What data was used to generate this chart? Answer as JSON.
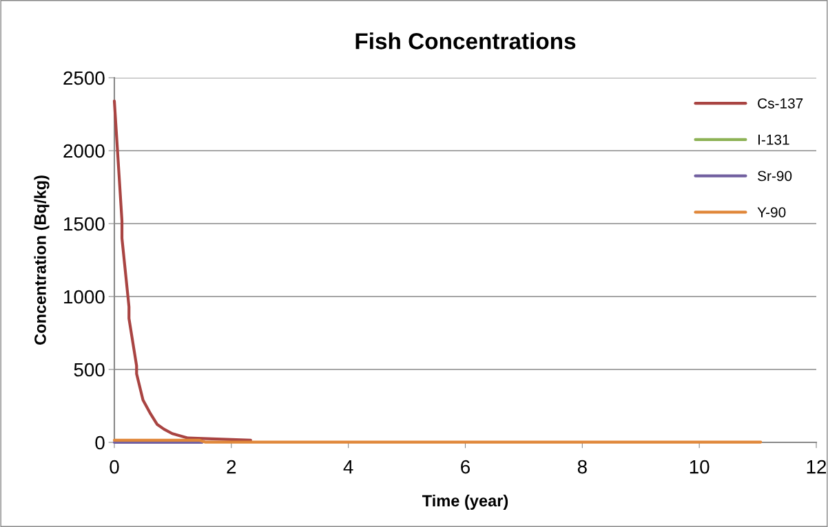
{
  "chart_data": {
    "type": "line",
    "title": "Fish Concentrations",
    "xlabel": "Time (year)",
    "ylabel": "Concentration (Bq/kg)",
    "xlim": [
      0,
      12
    ],
    "xticks": [
      0,
      2,
      4,
      6,
      8,
      10,
      12
    ],
    "ylim": [
      0,
      2500
    ],
    "yticks": [
      0,
      500,
      1000,
      1500,
      2000,
      2500
    ],
    "grid": "y",
    "legend": "top right",
    "marker": "none",
    "line_style": "solid",
    "series": [
      {
        "name": "Cs-137",
        "color": "#a94442",
        "x": [
          0,
          0.13,
          0.13,
          0.25,
          0.25,
          0.38,
          0.38,
          0.49,
          0.62,
          0.73,
          0.85,
          0.99,
          1.26,
          2.33
        ],
        "values": [
          2340,
          1520,
          1400,
          930,
          850,
          525,
          470,
          290,
          195,
          124,
          90,
          60,
          30,
          15
        ]
      },
      {
        "name": "I-131",
        "color": "#8db255"
      },
      {
        "name": "Sr-90",
        "color": "#7260a0",
        "x": [
          0,
          1.5
        ],
        "values": [
          0,
          0
        ]
      },
      {
        "name": "Y-90",
        "color": "#e0873a",
        "x": [
          0,
          1.45,
          1.55,
          11.05
        ],
        "values": [
          15,
          15,
          2,
          2
        ]
      }
    ]
  }
}
